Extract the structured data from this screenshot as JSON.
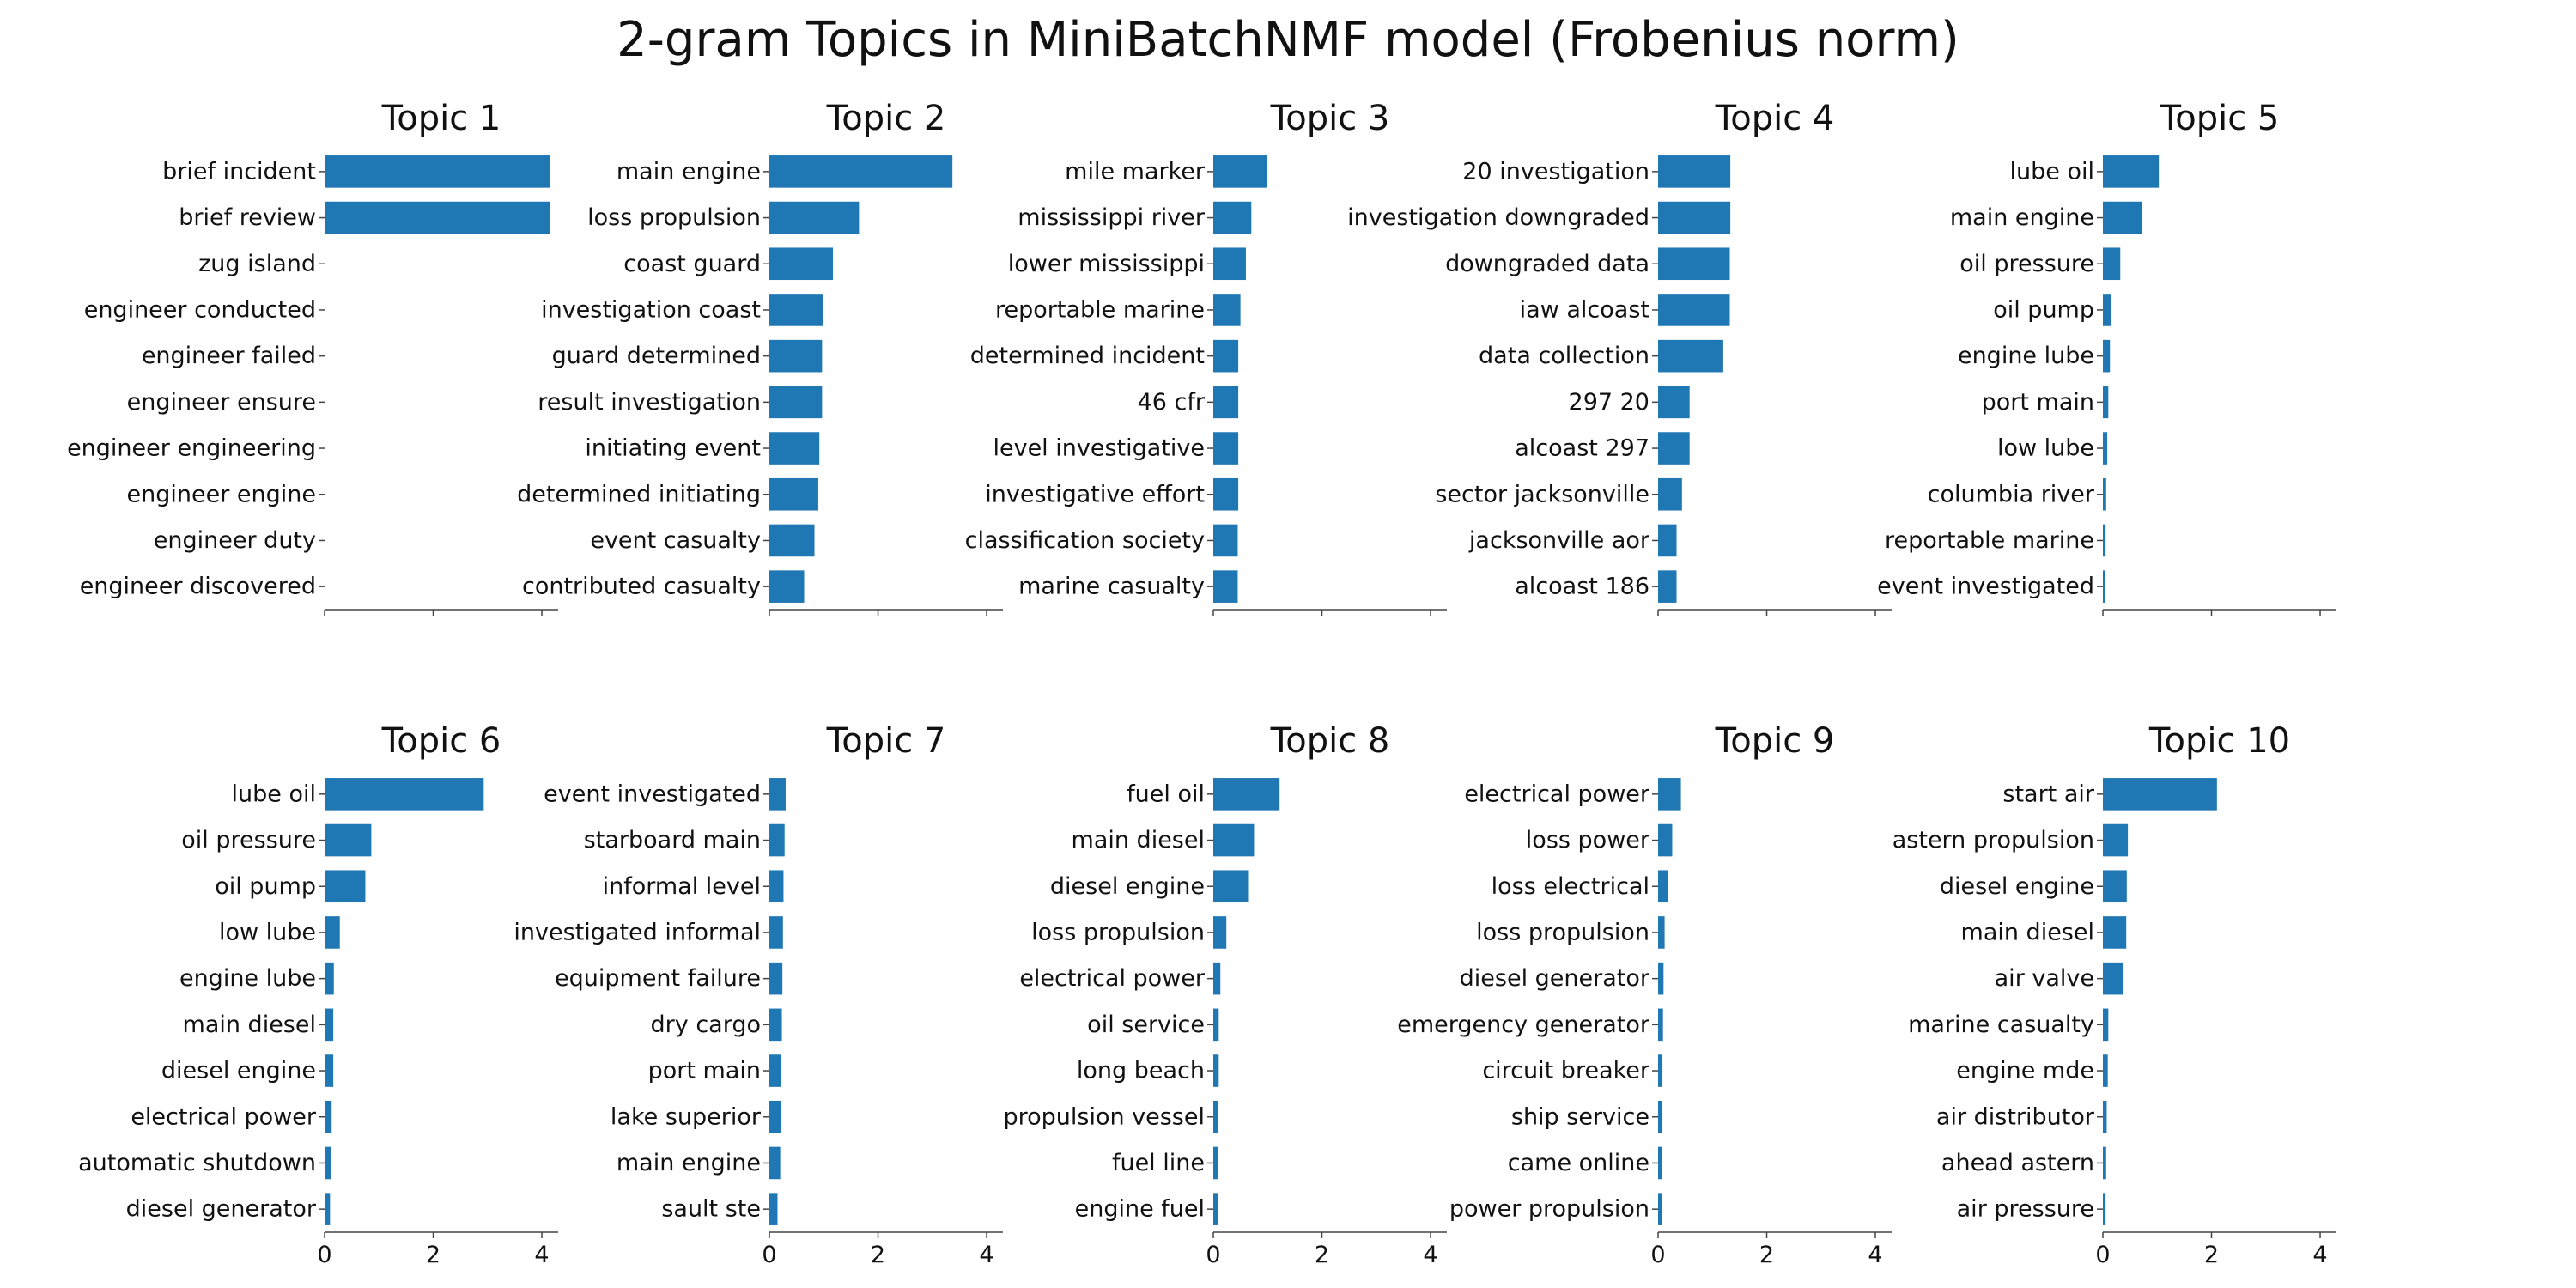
{
  "chart_data": {
    "type": "bar",
    "orientation": "horizontal",
    "title": "2-gram Topics in MiniBatchNMF model (Frobenius norm)",
    "xlim": [
      0,
      4.3
    ],
    "x_ticks": [
      0,
      2,
      4
    ],
    "grid": false,
    "legend": "none",
    "colors": {
      "bar": "#1f77b4",
      "axis": "#444444",
      "text": "#111111"
    },
    "topics": [
      {
        "title": "Topic 1",
        "labels": [
          "brief incident",
          "brief review",
          "zug island",
          "engineer conducted",
          "engineer failed",
          "engineer ensure",
          "engineer engineering",
          "engineer engine",
          "engineer duty",
          "engineer discovered"
        ],
        "values": [
          4.15,
          4.15,
          0.0,
          0.0,
          0.0,
          0.0,
          0.0,
          0.0,
          0.0,
          0.0
        ]
      },
      {
        "title": "Topic 2",
        "labels": [
          "main engine",
          "loss propulsion",
          "coast guard",
          "investigation coast",
          "guard determined",
          "result investigation",
          "initiating event",
          "determined initiating",
          "event casualty",
          "contributed casualty"
        ],
        "values": [
          3.37,
          1.65,
          1.17,
          0.99,
          0.97,
          0.97,
          0.92,
          0.9,
          0.83,
          0.64
        ]
      },
      {
        "title": "Topic 3",
        "labels": [
          "mile marker",
          "mississippi river",
          "lower mississippi",
          "reportable marine",
          "determined incident",
          "46 cfr",
          "level investigative",
          "investigative effort",
          "classification society",
          "marine casualty"
        ],
        "values": [
          0.98,
          0.7,
          0.6,
          0.5,
          0.46,
          0.46,
          0.46,
          0.46,
          0.45,
          0.45
        ]
      },
      {
        "title": "Topic 4",
        "labels": [
          "20 investigation",
          "investigation downgraded",
          "downgraded data",
          "iaw alcoast",
          "data collection",
          "297 20",
          "alcoast 297",
          "sector jacksonville",
          "jacksonville aor",
          "alcoast 186"
        ],
        "values": [
          1.33,
          1.33,
          1.32,
          1.32,
          1.2,
          0.58,
          0.58,
          0.44,
          0.34,
          0.34
        ]
      },
      {
        "title": "Topic 5",
        "labels": [
          "lube oil",
          "main engine",
          "oil pressure",
          "oil pump",
          "engine lube",
          "port main",
          "low lube",
          "columbia river",
          "reportable marine",
          "event investigated"
        ],
        "values": [
          1.03,
          0.72,
          0.32,
          0.15,
          0.13,
          0.1,
          0.08,
          0.06,
          0.05,
          0.04
        ]
      },
      {
        "title": "Topic 6",
        "labels": [
          "lube oil",
          "oil pressure",
          "oil pump",
          "low lube",
          "engine lube",
          "main diesel",
          "diesel engine",
          "electrical power",
          "automatic shutdown",
          "diesel generator"
        ],
        "values": [
          2.93,
          0.86,
          0.75,
          0.28,
          0.17,
          0.16,
          0.16,
          0.13,
          0.12,
          0.1
        ]
      },
      {
        "title": "Topic 7",
        "labels": [
          "event investigated",
          "starboard main",
          "informal level",
          "investigated informal",
          "equipment failure",
          "dry cargo",
          "port main",
          "lake superior",
          "main engine",
          "sault ste"
        ],
        "values": [
          0.3,
          0.28,
          0.26,
          0.25,
          0.24,
          0.23,
          0.22,
          0.21,
          0.2,
          0.15
        ]
      },
      {
        "title": "Topic 8",
        "labels": [
          "fuel oil",
          "main diesel",
          "diesel engine",
          "loss propulsion",
          "electrical power",
          "oil service",
          "long beach",
          "propulsion vessel",
          "fuel line",
          "engine fuel"
        ],
        "values": [
          1.22,
          0.75,
          0.64,
          0.24,
          0.13,
          0.1,
          0.1,
          0.09,
          0.09,
          0.09
        ]
      },
      {
        "title": "Topic 9",
        "labels": [
          "electrical power",
          "loss power",
          "loss electrical",
          "loss propulsion",
          "diesel generator",
          "emergency generator",
          "circuit breaker",
          "ship service",
          "came online",
          "power propulsion"
        ],
        "values": [
          0.42,
          0.26,
          0.18,
          0.12,
          0.1,
          0.09,
          0.08,
          0.08,
          0.07,
          0.07
        ]
      },
      {
        "title": "Topic 10",
        "labels": [
          "start air",
          "astern propulsion",
          "diesel engine",
          "main diesel",
          "air valve",
          "marine casualty",
          "engine mde",
          "air distributor",
          "ahead astern",
          "air pressure"
        ],
        "values": [
          2.1,
          0.46,
          0.44,
          0.43,
          0.38,
          0.1,
          0.09,
          0.07,
          0.06,
          0.05
        ]
      }
    ]
  }
}
